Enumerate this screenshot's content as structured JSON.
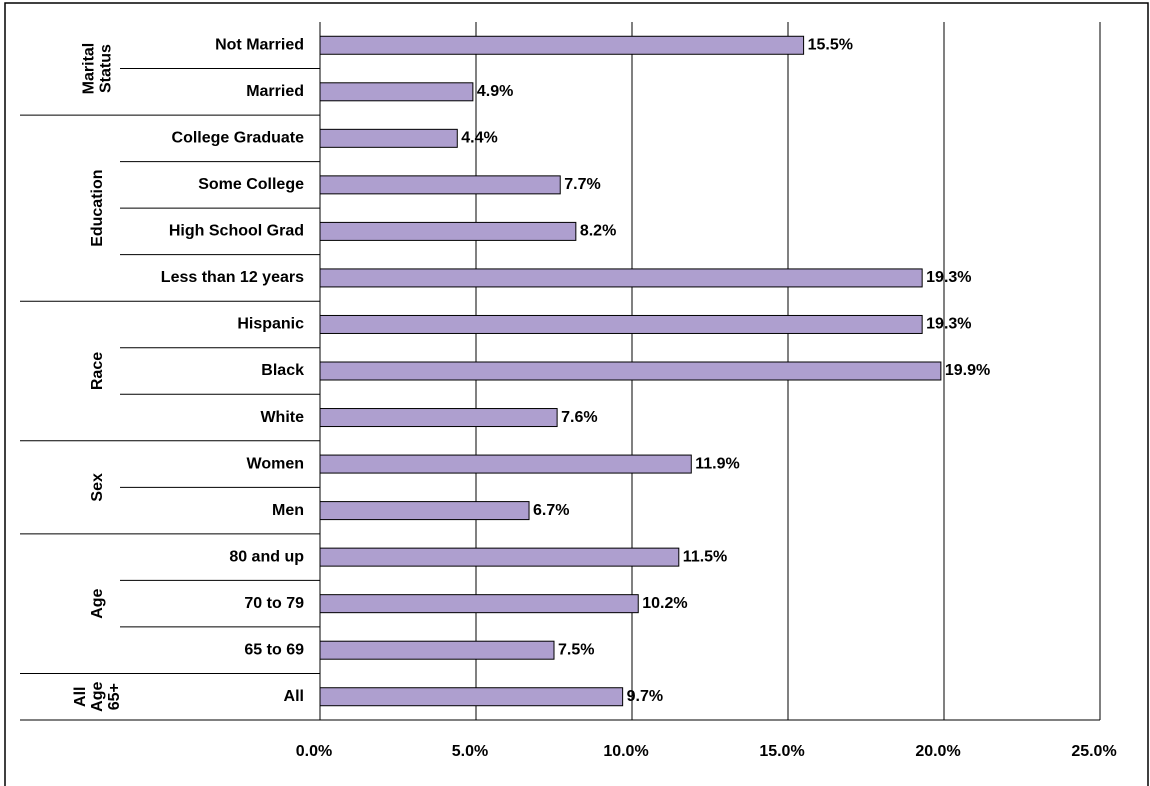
{
  "chart_data": {
    "type": "grouped-hbar",
    "color": "#ae9fcf",
    "xlim": [
      0,
      25
    ],
    "xticks": [
      {
        "value": 0,
        "label": "0.0%"
      },
      {
        "value": 5,
        "label": "5.0%"
      },
      {
        "value": 10,
        "label": "10.0%"
      },
      {
        "value": 15,
        "label": "15.0%"
      },
      {
        "value": 20,
        "label": "20.0%"
      },
      {
        "value": 25,
        "label": "25.0%"
      }
    ],
    "grid": true,
    "groups": [
      {
        "label": [
          "Marital",
          "Status"
        ],
        "categories": [
          "Not Married",
          "Married"
        ],
        "values": [
          15.5,
          4.9
        ],
        "value_labels": [
          "15.5%",
          "4.9%"
        ]
      },
      {
        "label": [
          "Education"
        ],
        "categories": [
          "College Graduate",
          "Some College",
          "High School Grad",
          "Less than 12 years"
        ],
        "values": [
          4.4,
          7.7,
          8.2,
          19.3
        ],
        "value_labels": [
          "4.4%",
          "7.7%",
          "8.2%",
          "19.3%"
        ]
      },
      {
        "label": [
          "Race"
        ],
        "categories": [
          "Hispanic",
          "Black",
          "White"
        ],
        "values": [
          19.3,
          19.9,
          7.6
        ],
        "value_labels": [
          "19.3%",
          "19.9%",
          "7.6%"
        ]
      },
      {
        "label": [
          "Sex"
        ],
        "categories": [
          "Women",
          "Men"
        ],
        "values": [
          11.9,
          6.7
        ],
        "value_labels": [
          "11.9%",
          "6.7%"
        ]
      },
      {
        "label": [
          "Age"
        ],
        "categories": [
          "80 and up",
          "70 to 79",
          "65 to 69"
        ],
        "values": [
          11.5,
          10.2,
          7.5
        ],
        "value_labels": [
          "11.5%",
          "10.2%",
          "7.5%"
        ]
      },
      {
        "label": [
          "All",
          "Age",
          "65+"
        ],
        "categories": [
          "All"
        ],
        "values": [
          9.7
        ],
        "value_labels": [
          "9.7%"
        ]
      }
    ]
  }
}
